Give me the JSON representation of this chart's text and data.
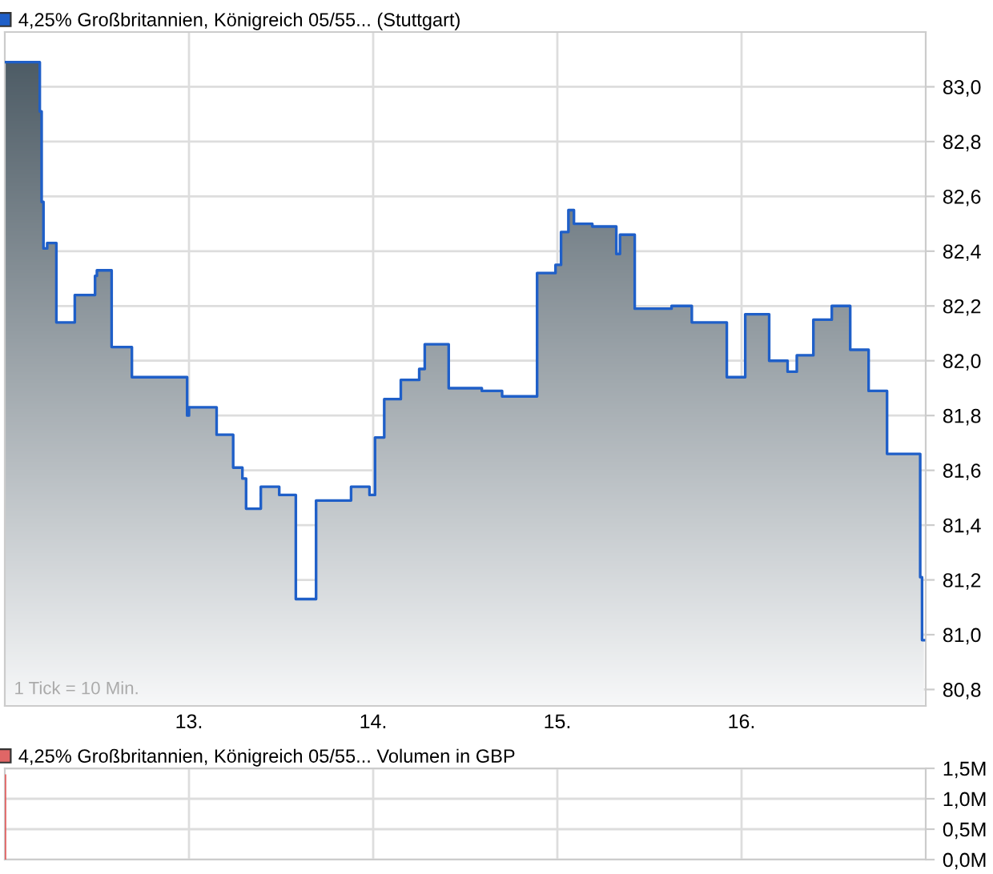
{
  "chart_data": [
    {
      "type": "step",
      "annotations": [
        "1 Tick = 10 Min."
      ],
      "series": [
        {
          "name": "4,25% Großbritannien, Königreich 05/55... (Stuttgart)",
          "color": "#1f5fc8",
          "x": [
            12.0,
            12.19,
            12.2,
            12.21,
            12.23,
            12.28,
            12.38,
            12.49,
            12.5,
            12.58,
            12.69,
            12.99,
            13.0,
            13.01,
            13.15,
            13.24,
            13.29,
            13.31,
            13.39,
            13.49,
            13.58,
            13.69,
            13.88,
            13.98,
            14.01,
            14.06,
            14.15,
            14.25,
            14.28,
            14.41,
            14.59,
            14.7,
            14.89,
            14.99,
            15.02,
            15.06,
            15.09,
            15.19,
            15.32,
            15.34,
            15.42,
            15.62,
            15.73,
            15.92,
            16.02,
            16.15,
            16.25,
            16.3,
            16.39,
            16.49,
            16.59,
            16.69,
            16.79,
            16.97,
            16.98,
            16.99
          ],
          "values": [
            83.09,
            82.91,
            82.58,
            82.41,
            82.43,
            82.14,
            82.24,
            82.31,
            82.33,
            82.05,
            81.94,
            81.8,
            81.83,
            81.83,
            81.73,
            81.61,
            81.57,
            81.46,
            81.54,
            81.51,
            81.13,
            81.49,
            81.54,
            81.51,
            81.72,
            81.86,
            81.93,
            81.97,
            82.06,
            81.9,
            81.89,
            81.87,
            82.32,
            82.35,
            82.47,
            82.55,
            82.5,
            82.49,
            82.39,
            82.46,
            82.19,
            82.2,
            82.14,
            81.94,
            82.17,
            82.0,
            81.96,
            82.02,
            82.15,
            82.2,
            82.04,
            81.89,
            81.66,
            81.21,
            80.98,
            80.98
          ]
        }
      ],
      "xlim": [
        12,
        17
      ],
      "xticks": [
        {
          "value": 13,
          "label": "13."
        },
        {
          "value": 14,
          "label": "14."
        },
        {
          "value": 15,
          "label": "15."
        },
        {
          "value": 16,
          "label": "16."
        }
      ],
      "ylim": [
        80.74,
        83.2
      ],
      "yticks": [
        {
          "value": 80.8,
          "label": "80,8"
        },
        {
          "value": 81.0,
          "label": "81,0"
        },
        {
          "value": 81.2,
          "label": "81,2"
        },
        {
          "value": 81.4,
          "label": "81,4"
        },
        {
          "value": 81.6,
          "label": "81,6"
        },
        {
          "value": 81.8,
          "label": "81,8"
        },
        {
          "value": 82.0,
          "label": "82,0"
        },
        {
          "value": 82.2,
          "label": "82,2"
        },
        {
          "value": 82.4,
          "label": "82,4"
        },
        {
          "value": 82.6,
          "label": "82,6"
        },
        {
          "value": 82.8,
          "label": "82,8"
        },
        {
          "value": 83.0,
          "label": "83,0"
        }
      ],
      "grid": true,
      "legend": "top left"
    },
    {
      "type": "bar",
      "series": [
        {
          "name": "4,25% Großbritannien, Königreich 05/55... Volumen in GBP",
          "color": "#e06666",
          "x": [
            12.0
          ],
          "values": [
            1.4
          ]
        }
      ],
      "xlim": [
        12,
        17
      ],
      "xticks": [
        13,
        14,
        15,
        16
      ],
      "ylim": [
        0,
        1.5
      ],
      "yticks": [
        {
          "value": 0,
          "label": "0,0M"
        },
        {
          "value": 0.5,
          "label": "0,5M"
        },
        {
          "value": 1.0,
          "label": "1,0M"
        },
        {
          "value": 1.5,
          "label": "1,5M"
        }
      ],
      "grid": true,
      "legend": "top left",
      "tick_labels": "y"
    }
  ]
}
